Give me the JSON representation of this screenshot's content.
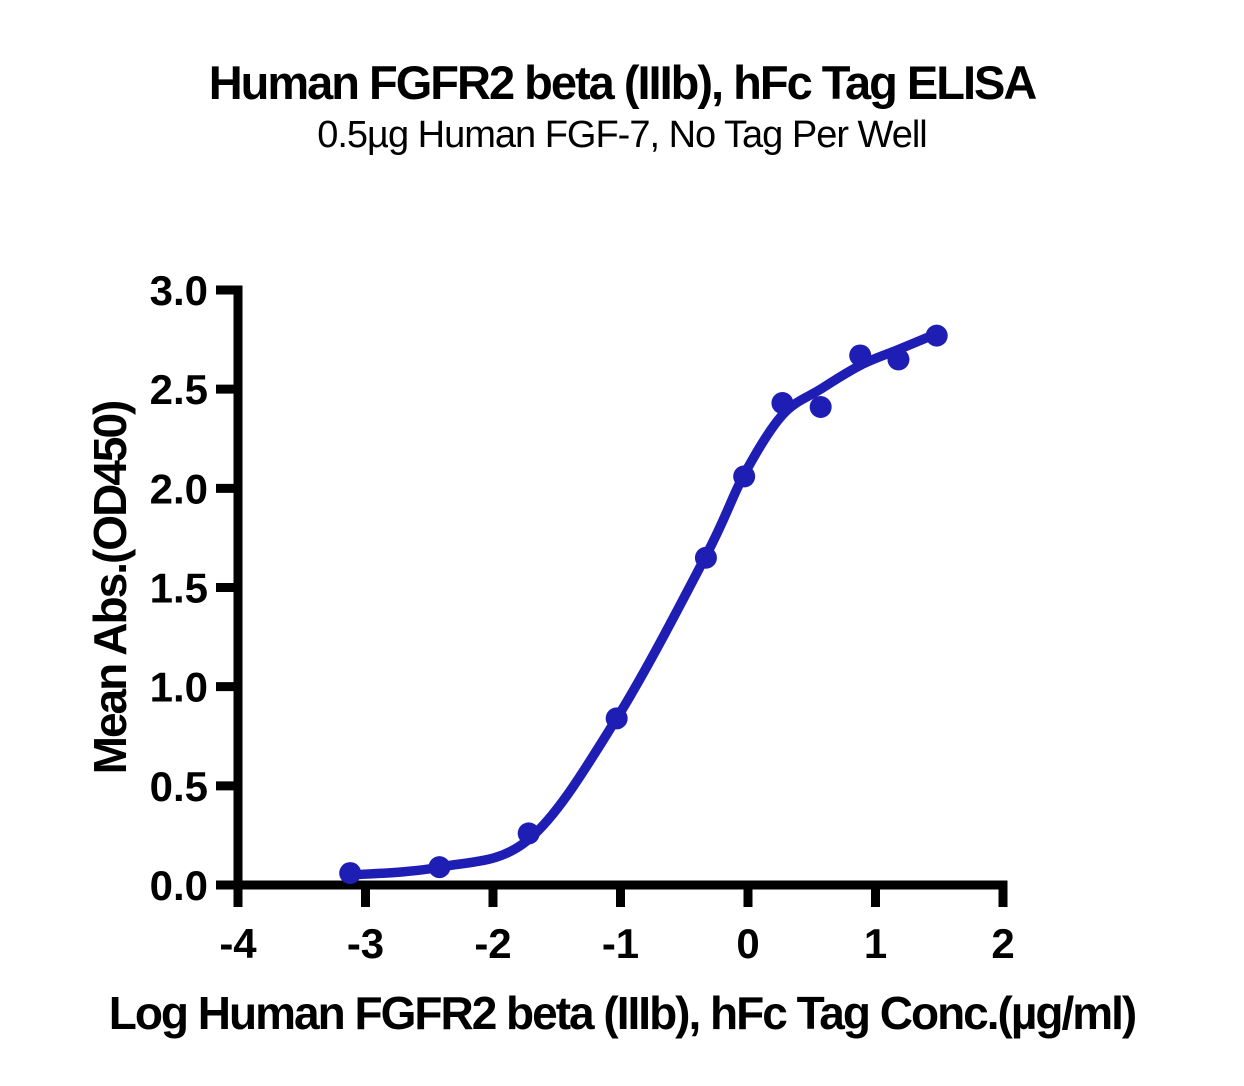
{
  "chart_data": {
    "type": "scatter",
    "title": "Human FGFR2 beta (IIIb), hFc Tag ELISA",
    "subtitle": "0.5µg Human FGF-7, No Tag Per Well",
    "xlabel": "Log Human FGFR2 beta (IIIb), hFc Tag Conc.(µg/ml)",
    "ylabel": "Mean Abs.(OD450)",
    "xlim": [
      -4,
      2
    ],
    "ylim": [
      0.0,
      3.0
    ],
    "xticks": [
      -4,
      -3,
      -2,
      -1,
      0,
      1,
      2
    ],
    "xtick_labels": [
      "-4",
      "-3",
      "-2",
      "-1",
      "0",
      "1",
      "2"
    ],
    "yticks": [
      0.0,
      0.5,
      1.0,
      1.5,
      2.0,
      2.5,
      3.0
    ],
    "ytick_labels": [
      "0.0",
      "0.5",
      "1.0",
      "1.5",
      "2.0",
      "2.5",
      "3.0"
    ],
    "grid": false,
    "legend": "none",
    "series": [
      {
        "name": "Human FGFR2 beta (IIIb), hFc Tag",
        "x": [
          -3.12,
          -2.42,
          -1.72,
          -1.03,
          -0.33,
          -0.03,
          0.27,
          0.57,
          0.88,
          1.18,
          1.48
        ],
        "y": [
          0.06,
          0.09,
          0.26,
          0.84,
          1.65,
          2.06,
          2.43,
          2.41,
          2.67,
          2.65,
          2.77
        ]
      }
    ],
    "fit_curve": {
      "type": "4PL sigmoidal fit",
      "anchors": [
        [
          -3.12,
          0.05
        ],
        [
          -2.42,
          0.09
        ],
        [
          -1.72,
          0.23
        ],
        [
          -1.03,
          0.84
        ],
        [
          -0.33,
          1.66
        ],
        [
          -0.03,
          2.07
        ],
        [
          0.27,
          2.37
        ],
        [
          0.57,
          2.5
        ],
        [
          0.88,
          2.62
        ],
        [
          1.18,
          2.7
        ],
        [
          1.48,
          2.78
        ]
      ]
    },
    "point_color": "#1E1EB4",
    "line_color": "#1E1EB4",
    "axis_color": "#000000",
    "background_color": "#FFFFFF"
  }
}
